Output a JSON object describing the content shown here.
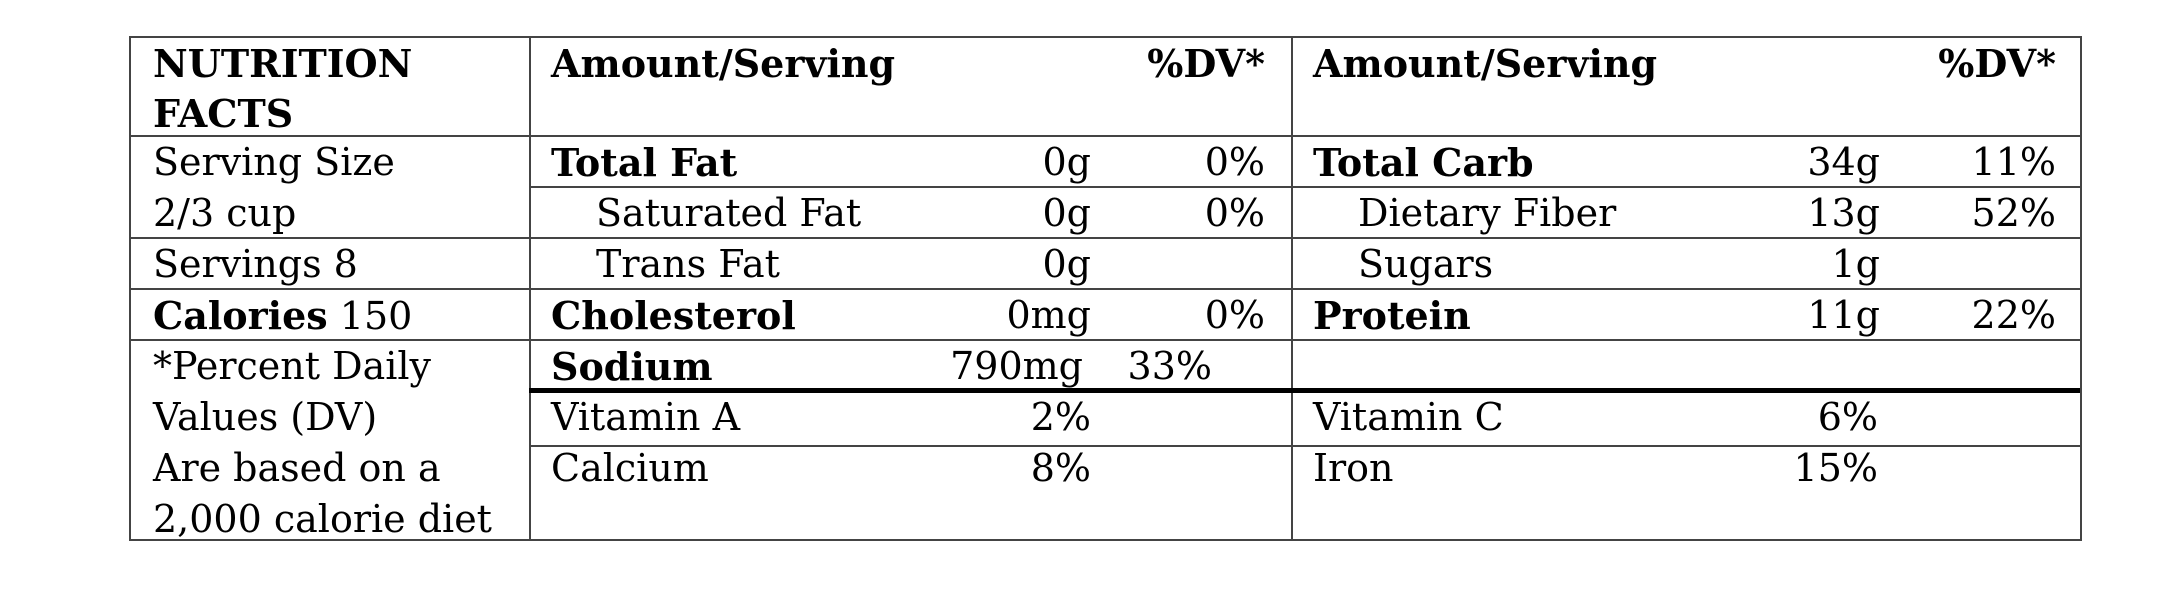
{
  "header": {
    "title_line1": "NUTRITION",
    "title_line2": "FACTS",
    "left_amount": "Amount/Serving",
    "left_dv": "%DV*",
    "right_amount": "Amount/Serving",
    "right_dv": "%DV*"
  },
  "info": {
    "serving_size_line1": "Serving Size",
    "serving_size_line2": "2/3 cup",
    "servings": "Servings 8",
    "calories_label": "Calories",
    "calories_value": "150",
    "note_line1": "*Percent Daily",
    "note_line2": "Values (DV)",
    "note_line3": "Are based on a",
    "note_line4": "2,000 calorie diet"
  },
  "left_nutrients": [
    {
      "name": "Total Fat",
      "amount": "0g",
      "dv": "0%"
    },
    {
      "name": "Saturated Fat",
      "amount": "0g",
      "dv": "0%"
    },
    {
      "name": "Trans Fat",
      "amount": "0g",
      "dv": ""
    },
    {
      "name": "Cholesterol",
      "amount": "0mg",
      "dv": "0%"
    },
    {
      "name": "Sodium",
      "amount": "790mg",
      "dv": "33%"
    }
  ],
  "right_nutrients": [
    {
      "name": "Total Carb",
      "amount": "34g",
      "dv": "11%"
    },
    {
      "name": "Dietary Fiber",
      "amount": "13g",
      "dv": "52%"
    },
    {
      "name": "Sugars",
      "amount": "1g",
      "dv": ""
    },
    {
      "name": "Protein",
      "amount": "11g",
      "dv": "22%"
    }
  ],
  "vitamins": [
    {
      "name": "Vitamin A",
      "dv": "2%"
    },
    {
      "name": "Calcium",
      "dv": "8%"
    },
    {
      "name": "Vitamin C",
      "dv": "6%"
    },
    {
      "name": "Iron",
      "dv": "15%"
    }
  ]
}
